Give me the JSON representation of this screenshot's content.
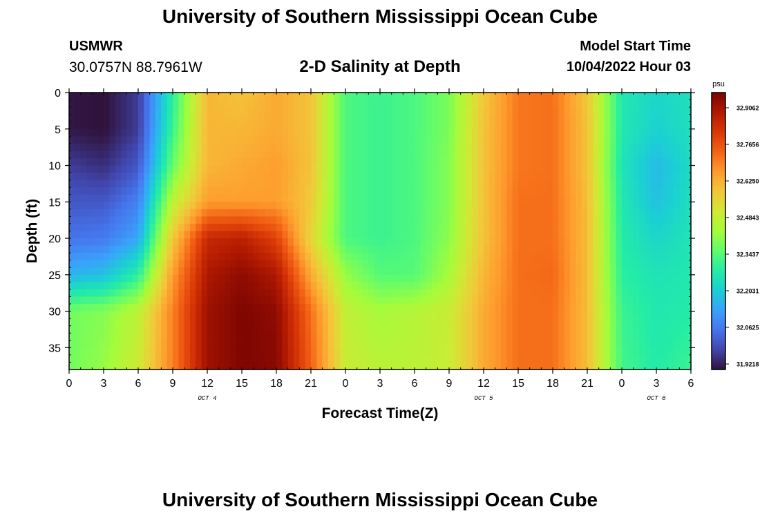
{
  "header": {
    "title": "University of Southern Mississippi Ocean Cube",
    "station_id": "USMWR",
    "station_coords": "30.0757N  88.7961W",
    "plot_title": "2-D Salinity at Depth",
    "model_start_label": "Model Start Time",
    "model_start_value": "10/04/2022 Hour 03"
  },
  "footer": {
    "title": "University of Southern Mississippi Ocean Cube"
  },
  "chart_data": {
    "type": "heatmap",
    "title": "2-D Salinity at Depth",
    "xlabel": "Forecast Time(Z)",
    "ylabel": "Depth (ft)",
    "x_tick_labels": [
      "0",
      "3",
      "6",
      "9",
      "12",
      "15",
      "18",
      "21",
      "0",
      "3",
      "6",
      "9",
      "12",
      "15",
      "18",
      "21",
      "0",
      "3",
      "6"
    ],
    "x_tick_hours": [
      0,
      3,
      6,
      9,
      12,
      15,
      18,
      21,
      24,
      27,
      30,
      33,
      36,
      39,
      42,
      45,
      48,
      51,
      54
    ],
    "x_day_labels": [
      {
        "label": "OCT 4",
        "hour": 12
      },
      {
        "label": "OCT 5",
        "hour": 36
      },
      {
        "label": "OCT 6",
        "hour": 51
      }
    ],
    "xlim": [
      0,
      54
    ],
    "y_tick_labels": [
      "0",
      "5",
      "10",
      "15",
      "20",
      "25",
      "30",
      "35"
    ],
    "y_ticks": [
      0,
      5,
      10,
      15,
      20,
      25,
      30,
      35
    ],
    "ylim": [
      0,
      38
    ],
    "y_inverted": true,
    "colorbar": {
      "unit": "psu",
      "min": 31.9218,
      "max": 32.9062,
      "tick_labels": [
        "32.9062",
        "32.7656",
        "32.6250",
        "32.4843",
        "32.3437",
        "32.2031",
        "32.0625",
        "31.9218"
      ],
      "colors": [
        "#30123b",
        "#4145ab",
        "#4675ed",
        "#39a2fc",
        "#1bcfd4",
        "#24eca6",
        "#61fc6c",
        "#a4fc3b",
        "#d1e834",
        "#f3c63a",
        "#fe9b2d",
        "#f36315",
        "#d93806",
        "#b11901",
        "#7a0402"
      ]
    },
    "depths": [
      0,
      5,
      10,
      15,
      20,
      25,
      30,
      38
    ],
    "grid_hours": [
      0,
      3,
      6,
      9,
      12,
      15,
      18,
      21,
      24,
      27,
      30,
      33,
      36,
      39,
      42,
      45,
      48,
      51,
      54
    ],
    "values": [
      [
        31.93,
        31.92,
        31.98,
        32.28,
        32.58,
        32.56,
        32.6,
        32.56,
        32.32,
        32.3,
        32.32,
        32.37,
        32.55,
        32.67,
        32.68,
        32.55,
        32.26,
        32.22,
        32.24
      ],
      [
        31.93,
        31.92,
        31.98,
        32.3,
        32.58,
        32.58,
        32.6,
        32.56,
        32.32,
        32.3,
        32.32,
        32.37,
        32.56,
        32.67,
        32.68,
        32.56,
        32.26,
        32.21,
        32.24
      ],
      [
        31.98,
        31.96,
        32.02,
        32.35,
        32.58,
        32.6,
        32.62,
        32.56,
        32.32,
        32.3,
        32.32,
        32.38,
        32.56,
        32.67,
        32.68,
        32.56,
        32.25,
        32.17,
        32.23
      ],
      [
        32.02,
        32.02,
        32.08,
        32.45,
        32.62,
        32.62,
        32.62,
        32.55,
        32.32,
        32.3,
        32.32,
        32.38,
        32.56,
        32.68,
        32.68,
        32.57,
        32.26,
        32.18,
        32.24
      ],
      [
        32.06,
        32.07,
        32.14,
        32.55,
        32.8,
        32.82,
        32.75,
        32.52,
        32.32,
        32.3,
        32.32,
        32.39,
        32.56,
        32.68,
        32.68,
        32.57,
        32.27,
        32.22,
        32.25
      ],
      [
        32.16,
        32.18,
        32.28,
        32.62,
        32.84,
        32.88,
        32.84,
        32.6,
        32.4,
        32.33,
        32.33,
        32.42,
        32.58,
        32.68,
        32.69,
        32.57,
        32.28,
        32.25,
        32.26
      ],
      [
        32.36,
        32.38,
        32.45,
        32.66,
        32.86,
        32.9,
        32.88,
        32.68,
        32.46,
        32.42,
        32.44,
        32.47,
        32.6,
        32.68,
        32.68,
        32.57,
        32.3,
        32.26,
        32.27
      ],
      [
        32.36,
        32.4,
        32.48,
        32.66,
        32.86,
        32.9,
        32.89,
        32.7,
        32.47,
        32.45,
        32.45,
        32.47,
        32.6,
        32.68,
        32.68,
        32.57,
        32.31,
        32.27,
        32.3
      ]
    ]
  }
}
